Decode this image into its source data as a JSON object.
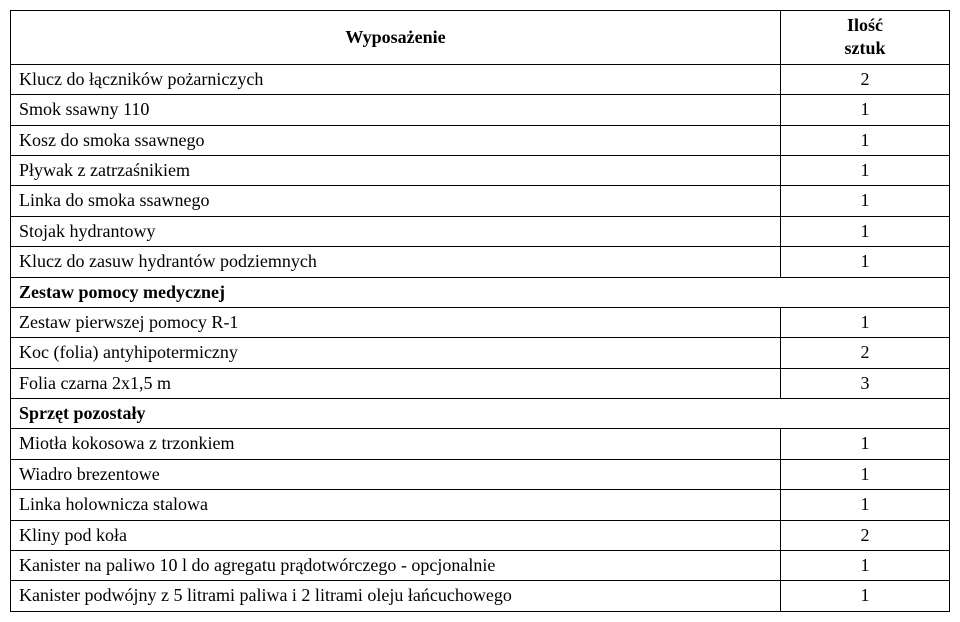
{
  "table": {
    "header": {
      "col1": "Wyposażenie",
      "col2_line1": "Ilość",
      "col2_line2": "sztuk"
    },
    "rows": [
      {
        "type": "data",
        "name": "Klucz do łączników pożarniczych",
        "qty": "2"
      },
      {
        "type": "data",
        "name": "Smok ssawny 110",
        "qty": "1"
      },
      {
        "type": "data",
        "name": "Kosz do smoka ssawnego",
        "qty": "1"
      },
      {
        "type": "data",
        "name": "Pływak z zatrzaśnikiem",
        "qty": "1"
      },
      {
        "type": "data",
        "name": "Linka do smoka ssawnego",
        "qty": "1"
      },
      {
        "type": "data",
        "name": "Stojak hydrantowy",
        "qty": "1"
      },
      {
        "type": "data",
        "name": "Klucz do zasuw hydrantów podziemnych",
        "qty": "1"
      },
      {
        "type": "section",
        "name": "Zestaw pomocy medycznej"
      },
      {
        "type": "data",
        "name": "Zestaw pierwszej pomocy R-1",
        "qty": "1"
      },
      {
        "type": "data",
        "name": "Koc (folia) antyhipotermiczny",
        "qty": "2"
      },
      {
        "type": "data",
        "name": "Folia czarna 2x1,5 m",
        "qty": "3"
      },
      {
        "type": "section",
        "name": "Sprzęt pozostały"
      },
      {
        "type": "data",
        "name": "Miotła kokosowa z trzonkiem",
        "qty": "1"
      },
      {
        "type": "data",
        "name": "Wiadro brezentowe",
        "qty": "1"
      },
      {
        "type": "data",
        "name": "Linka holownicza stalowa",
        "qty": "1"
      },
      {
        "type": "data",
        "name": "Kliny pod koła",
        "qty": "2"
      },
      {
        "type": "data",
        "name": "Kanister na paliwo 10 l do agregatu prądotwórczego - opcjonalnie",
        "qty": "1"
      },
      {
        "type": "data",
        "name": "Kanister podwójny z 5 litrami paliwa i 2 litrami oleju łańcuchowego",
        "qty": "1"
      }
    ]
  },
  "styling": {
    "font_family": "Times New Roman",
    "font_size_pt": 14,
    "border_color": "#000000",
    "background_color": "#ffffff",
    "text_color": "#000000",
    "col1_width_pct": 82,
    "col2_width_pct": 18
  }
}
